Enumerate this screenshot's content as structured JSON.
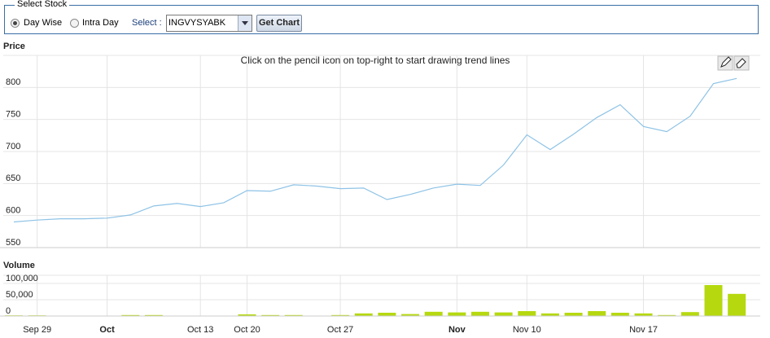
{
  "form": {
    "legend": "Select Stock",
    "options": [
      "Day Wise",
      "Intra Day"
    ],
    "selected_option": 0,
    "select_label": "Select :",
    "stock": "INGVYSYABK",
    "button": "Get Chart"
  },
  "chart_data": [
    {
      "type": "line",
      "title": "Price",
      "annotation": "Click on the pencil icon on top-right to start drawing trend lines",
      "series": [
        {
          "name": null,
          "color": "#8ec3e6",
          "values": [
            590,
            593,
            595,
            595,
            596,
            601,
            615,
            619,
            614,
            620,
            639,
            638,
            648,
            646,
            642,
            643,
            625,
            633,
            643,
            649,
            647,
            679,
            726,
            703,
            727,
            753,
            773,
            739,
            731,
            755,
            806,
            814
          ]
        }
      ],
      "ylim": [
        550,
        850
      ],
      "yticks": [
        550,
        600,
        650,
        700,
        750,
        800
      ],
      "grid": true
    },
    {
      "type": "bar",
      "title": "Volume",
      "categories": [
        null,
        "Sep 29",
        null,
        null,
        "Oct",
        null,
        null,
        null,
        "Oct 13",
        null,
        "Oct 20",
        null,
        null,
        null,
        "Oct 27",
        null,
        null,
        null,
        null,
        "Nov",
        null,
        null,
        "Nov 10",
        null,
        null,
        null,
        null,
        "Nov 17",
        null,
        null,
        null,
        null
      ],
      "values": [
        2000,
        2000,
        1000,
        1000,
        1000,
        3000,
        3000,
        1000,
        1000,
        1000,
        5000,
        3000,
        3000,
        1000,
        3000,
        8000,
        10000,
        6000,
        13000,
        11000,
        13000,
        11000,
        15000,
        8000,
        10000,
        15000,
        10000,
        8000,
        3000,
        12000,
        95000,
        68000
      ],
      "color": "#b5d90e",
      "ylim": [
        0,
        125000
      ],
      "yticks": [
        0,
        {
          "value": 50000,
          "label": "50,000"
        },
        {
          "value": 100000,
          "label": "100,000"
        }
      ],
      "grid": true
    }
  ]
}
